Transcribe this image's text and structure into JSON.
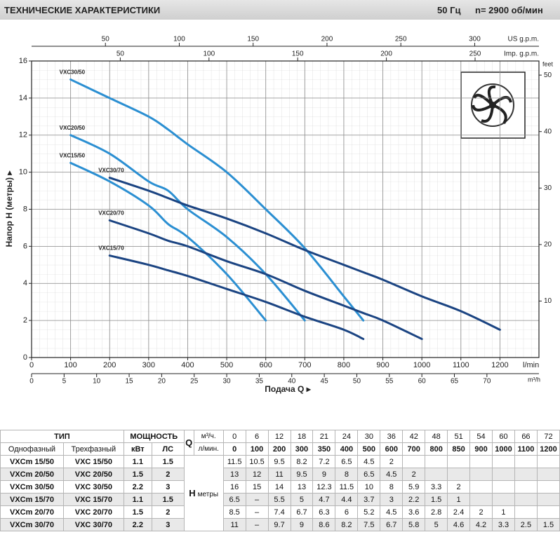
{
  "header": {
    "title": "ТЕХНИЧЕСКИЕ ХАРАКТЕРИСТИКИ",
    "frequency": "50 Гц",
    "speed": "n= 2900 об/мин"
  },
  "chart_data": {
    "type": "line",
    "y_label": "Напор H (метры) ▸",
    "x_label": "Подача Q ▸",
    "x_unit": "l/min",
    "xlim": [
      0,
      1300
    ],
    "xticks": [
      0,
      100,
      200,
      300,
      400,
      500,
      600,
      700,
      800,
      900,
      1000,
      1100,
      1200
    ],
    "ylim": [
      0,
      16
    ],
    "yticks": [
      0,
      2,
      4,
      6,
      8,
      10,
      12,
      14,
      16
    ],
    "grid": true,
    "top_axes": [
      {
        "unit": "US g.p.m.",
        "xlim": [
          0,
          343.5
        ],
        "xticks": [
          50,
          100,
          150,
          200,
          250,
          300
        ]
      },
      {
        "unit": "Imp. g.p.m.",
        "xlim": [
          0,
          286
        ],
        "xticks": [
          50,
          100,
          150,
          200,
          250
        ]
      }
    ],
    "bottom_axis2": {
      "unit": "m³/h",
      "xlim": [
        0,
        78
      ],
      "xticks": [
        0,
        5,
        10,
        15,
        20,
        25,
        30,
        35,
        40,
        45,
        50,
        55,
        60,
        65,
        70
      ]
    },
    "right_axis": {
      "unit": "feet",
      "ylim": [
        0,
        52.5
      ],
      "yticks": [
        10,
        20,
        30,
        40,
        50
      ]
    },
    "series": [
      {
        "name": "VXC30/50",
        "color": "#2b8fd2",
        "x": [
          100,
          200,
          300,
          350,
          400,
          500,
          600,
          700,
          800,
          850
        ],
        "values": [
          15,
          14,
          13,
          12.3,
          11.5,
          10,
          8,
          5.9,
          3.3,
          2
        ]
      },
      {
        "name": "VXC20/50",
        "color": "#2b8fd2",
        "x": [
          100,
          200,
          300,
          350,
          400,
          500,
          600,
          700
        ],
        "values": [
          12,
          11,
          9.5,
          9,
          8,
          6.5,
          4.5,
          2
        ]
      },
      {
        "name": "VXC15/50",
        "color": "#2b8fd2",
        "x": [
          100,
          200,
          300,
          350,
          400,
          500,
          600
        ],
        "values": [
          10.5,
          9.5,
          8.2,
          7.2,
          6.5,
          4.5,
          2
        ]
      },
      {
        "name": "VXC30/70",
        "color": "#1b4482",
        "x": [
          200,
          300,
          350,
          400,
          500,
          600,
          700,
          800,
          850,
          900,
          1000,
          1100,
          1200
        ],
        "values": [
          9.7,
          9,
          8.6,
          8.2,
          7.5,
          6.7,
          5.8,
          5,
          4.6,
          4.2,
          3.3,
          2.5,
          1.5
        ]
      },
      {
        "name": "VXC20/70",
        "color": "#1b4482",
        "x": [
          200,
          300,
          350,
          400,
          500,
          600,
          700,
          800,
          850,
          900,
          1000
        ],
        "values": [
          7.4,
          6.7,
          6.3,
          6,
          5.2,
          4.5,
          3.6,
          2.8,
          2.4,
          2,
          1
        ]
      },
      {
        "name": "VXC15/70",
        "color": "#1b4482",
        "x": [
          200,
          300,
          350,
          400,
          500,
          600,
          700,
          800,
          850
        ],
        "values": [
          5.5,
          5,
          4.7,
          4.4,
          3.7,
          3,
          2.2,
          1.5,
          1
        ]
      }
    ]
  },
  "table": {
    "group_headers": [
      "ТИП",
      "МОЩНОСТЬ"
    ],
    "sub_headers": [
      "Однофазный",
      "Трехфазный",
      "кВт",
      "ЛС"
    ],
    "q_symbol": "Q",
    "q_units": [
      "м³/ч.",
      "л/мин."
    ],
    "h_symbol": "H",
    "h_unit": "метры",
    "flow_m3h": [
      "0",
      "6",
      "12",
      "18",
      "21",
      "24",
      "30",
      "36",
      "42",
      "48",
      "51",
      "54",
      "60",
      "66",
      "72"
    ],
    "flow_lmin": [
      "0",
      "100",
      "200",
      "300",
      "350",
      "400",
      "500",
      "600",
      "700",
      "800",
      "850",
      "900",
      "1000",
      "1100",
      "1200"
    ],
    "rows": [
      {
        "type": [
          "VXCm 15/50",
          "VXC 15/50",
          "1.1",
          "1.5"
        ],
        "head": [
          "11.5",
          "10.5",
          "9.5",
          "8.2",
          "7.2",
          "6.5",
          "4.5",
          "2"
        ]
      },
      {
        "type": [
          "VXCm 20/50",
          "VXC 20/50",
          "1.5",
          "2"
        ],
        "head": [
          "13",
          "12",
          "11",
          "9.5",
          "9",
          "8",
          "6.5",
          "4.5",
          "2"
        ]
      },
      {
        "type": [
          "VXCm 30/50",
          "VXC 30/50",
          "2.2",
          "3"
        ],
        "head": [
          "16",
          "15",
          "14",
          "13",
          "12.3",
          "11.5",
          "10",
          "8",
          "5.9",
          "3.3",
          "2"
        ]
      },
      {
        "type": [
          "VXCm 15/70",
          "VXC 15/70",
          "1.1",
          "1.5"
        ],
        "head": [
          "6.5",
          "–",
          "5.5",
          "5",
          "4.7",
          "4.4",
          "3.7",
          "3",
          "2.2",
          "1.5",
          "1"
        ]
      },
      {
        "type": [
          "VXCm 20/70",
          "VXC 20/70",
          "1.5",
          "2"
        ],
        "head": [
          "8.5",
          "–",
          "7.4",
          "6.7",
          "6.3",
          "6",
          "5.2",
          "4.5",
          "3.6",
          "2.8",
          "2.4",
          "2",
          "1"
        ]
      },
      {
        "type": [
          "VXCm 30/70",
          "VXC 30/70",
          "2.2",
          "3"
        ],
        "head": [
          "11",
          "–",
          "9.7",
          "9",
          "8.6",
          "8.2",
          "7.5",
          "6.7",
          "5.8",
          "5",
          "4.6",
          "4.2",
          "3.3",
          "2.5",
          "1.5"
        ]
      }
    ]
  }
}
